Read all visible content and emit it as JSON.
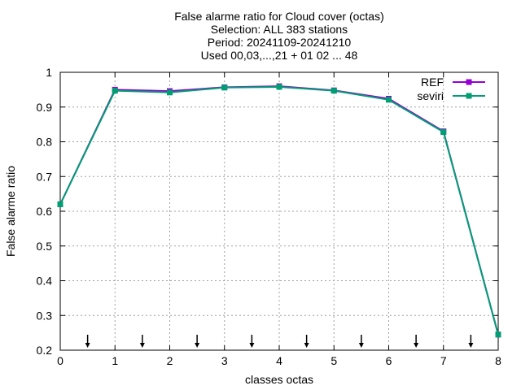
{
  "chart_data": {
    "type": "line",
    "title_lines": [
      "False alarme ratio  for Cloud cover (octas)",
      "Selection: ALL    383 stations",
      "Period: 20241109-20241210",
      "Used 00,03,...,21 + 01 02 ... 48"
    ],
    "xlabel": "classes octas",
    "ylabel": "False alarme ratio",
    "xlim": [
      0,
      8
    ],
    "ylim": [
      0.2,
      1.0
    ],
    "xticks": [
      "0",
      "1",
      "2",
      "3",
      "4",
      "5",
      "6",
      "7",
      "8"
    ],
    "yticks": [
      "0.2",
      "0.3",
      "0.4",
      "0.5",
      "0.6",
      "0.7",
      "0.8",
      "0.9",
      "1"
    ],
    "grid": true,
    "legend_position": "top-right",
    "x": [
      0,
      1,
      2,
      3,
      4,
      5,
      6,
      7,
      8
    ],
    "series": [
      {
        "name": "REF",
        "color": "#9400d3",
        "values": [
          0.62,
          0.95,
          0.946,
          0.957,
          0.96,
          0.948,
          0.924,
          0.83,
          0.245
        ]
      },
      {
        "name": "seviri",
        "color": "#009e73",
        "values": [
          0.62,
          0.947,
          0.942,
          0.956,
          0.958,
          0.947,
          0.921,
          0.828,
          0.245
        ]
      }
    ],
    "markers_x": [
      0.5,
      1.5,
      2.5,
      3.5,
      4.5,
      5.5,
      6.5,
      7.5
    ]
  }
}
